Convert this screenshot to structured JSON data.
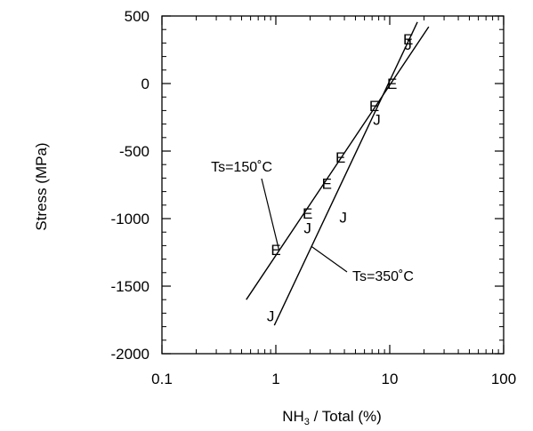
{
  "chart_data": {
    "type": "scatter",
    "xscale": "log",
    "xlim": [
      0.1,
      100
    ],
    "ylim": [
      -2000,
      500
    ],
    "xticks": [
      "0.1",
      "1",
      "10",
      "100"
    ],
    "yticks": [
      "500",
      "0",
      "-500",
      "-1000",
      "-1500",
      "-2000"
    ],
    "ylabel": "Stress (MPa)",
    "xlabel": {
      "main": "NH",
      "sub": "3",
      "rest": " / Total (%)"
    },
    "grid": false,
    "series": [
      {
        "marker": "E",
        "points": [
          {
            "x": 1.0,
            "y": -1230
          },
          {
            "x": 1.9,
            "y": -960
          },
          {
            "x": 2.8,
            "y": -740
          },
          {
            "x": 3.7,
            "y": -545
          },
          {
            "x": 7.3,
            "y": -165
          },
          {
            "x": 10.5,
            "y": 0
          },
          {
            "x": 14.5,
            "y": 330
          }
        ]
      },
      {
        "marker": "J",
        "points": [
          {
            "x": 0.9,
            "y": -1720
          },
          {
            "x": 1.9,
            "y": -1070
          },
          {
            "x": 3.9,
            "y": -990
          },
          {
            "x": 7.7,
            "y": -265
          },
          {
            "x": 14.5,
            "y": 290
          }
        ]
      }
    ],
    "fits": [
      {
        "name": "Ts=150°C",
        "from": {
          "x": 0.55,
          "y": -1600
        },
        "to": {
          "x": 22,
          "y": 420
        }
      },
      {
        "name": "Ts=350°C",
        "from": {
          "x": 0.97,
          "y": -1790
        },
        "to": {
          "x": 17.5,
          "y": 455
        }
      }
    ],
    "annotations": [
      {
        "text": "Ts=150˚C",
        "fit": 0
      },
      {
        "text": "Ts=350˚C",
        "fit": 1
      }
    ]
  }
}
